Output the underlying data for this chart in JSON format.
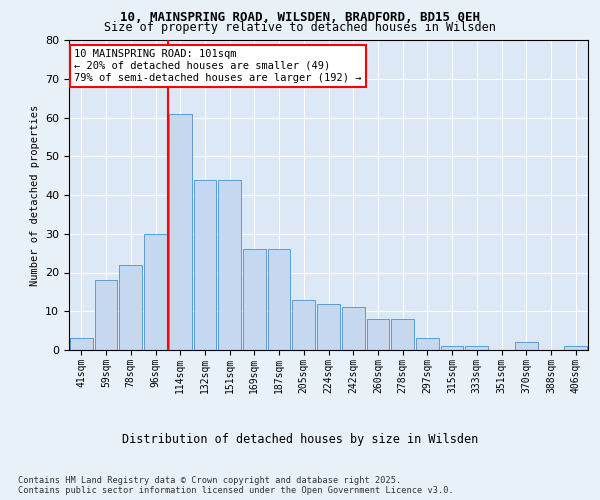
{
  "title1": "10, MAINSPRING ROAD, WILSDEN, BRADFORD, BD15 0EH",
  "title2": "Size of property relative to detached houses in Wilsden",
  "xlabel": "Distribution of detached houses by size in Wilsden",
  "ylabel": "Number of detached properties",
  "categories": [
    "41sqm",
    "59sqm",
    "78sqm",
    "96sqm",
    "114sqm",
    "132sqm",
    "151sqm",
    "169sqm",
    "187sqm",
    "205sqm",
    "224sqm",
    "242sqm",
    "260sqm",
    "278sqm",
    "297sqm",
    "315sqm",
    "333sqm",
    "351sqm",
    "370sqm",
    "388sqm",
    "406sqm"
  ],
  "values": [
    3,
    18,
    22,
    30,
    61,
    44,
    44,
    26,
    26,
    13,
    12,
    11,
    8,
    8,
    3,
    1,
    1,
    0,
    2,
    0,
    1
  ],
  "bar_color": "#c5d8f0",
  "bar_edge_color": "#5b9bd5",
  "vline_x_index": 3.5,
  "vline_color": "#ff0000",
  "annotation_text": "10 MAINSPRING ROAD: 101sqm\n← 20% of detached houses are smaller (49)\n79% of semi-detached houses are larger (192) →",
  "annotation_box_color": "#ffffff",
  "annotation_box_edge": "#ff0000",
  "ylim": [
    0,
    80
  ],
  "yticks": [
    0,
    10,
    20,
    30,
    40,
    50,
    60,
    70,
    80
  ],
  "footer": "Contains HM Land Registry data © Crown copyright and database right 2025.\nContains public sector information licensed under the Open Government Licence v3.0.",
  "bg_color": "#e8f0f8",
  "plot_bg_color": "#dce8f5"
}
